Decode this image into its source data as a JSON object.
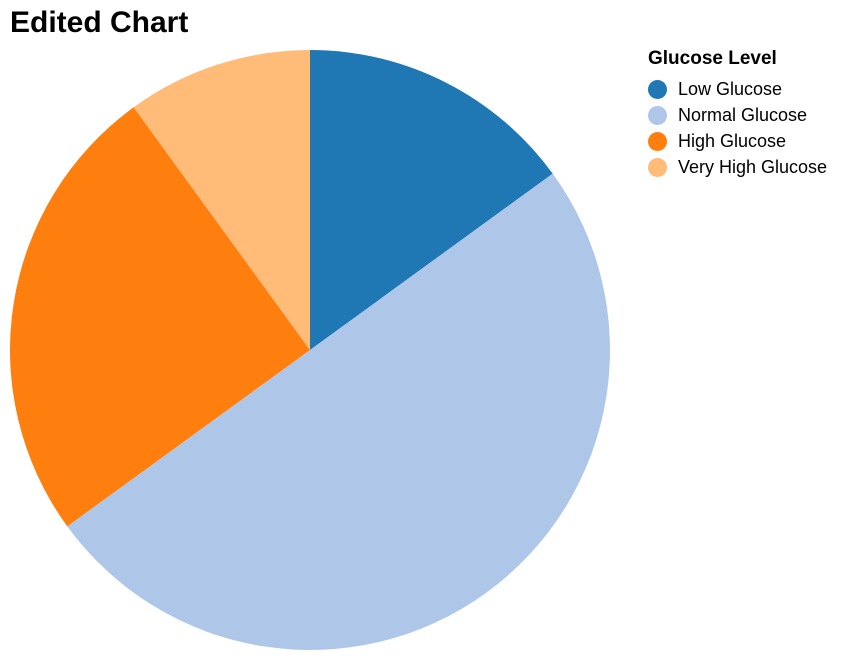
{
  "chart_data": {
    "type": "pie",
    "title": "Edited Chart",
    "legend_title": "Glucose Level",
    "legend_position": "top-right",
    "categories": [
      "Low Glucose",
      "Normal Glucose",
      "High Glucose",
      "Very High Glucose"
    ],
    "values": [
      15,
      50,
      25,
      10
    ],
    "colors": [
      "#1f77b4",
      "#aec7e8",
      "#ff7f0e",
      "#ffbb78"
    ]
  }
}
